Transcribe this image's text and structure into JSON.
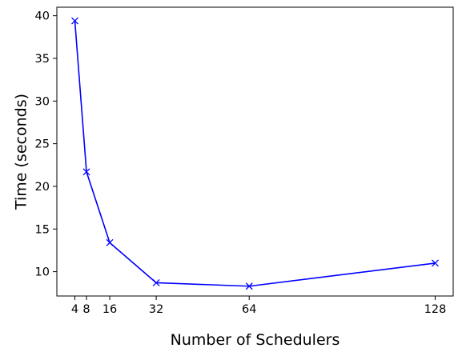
{
  "chart_data": {
    "type": "line",
    "title": "",
    "xlabel": "Number of Schedulers",
    "ylabel": "Time (seconds)",
    "x": [
      4,
      8,
      16,
      32,
      64,
      128
    ],
    "series": [
      {
        "values": [
          39.4,
          21.7,
          13.4,
          8.7,
          8.3,
          11.0
        ],
        "color": "#0000ff",
        "marker": "x"
      }
    ],
    "xlim": [
      -2.2,
      134.2
    ],
    "ylim": [
      7.15,
      41.0
    ],
    "xticks": [
      4,
      8,
      16,
      32,
      64,
      128
    ],
    "xtick_labels": [
      "4",
      "8",
      "16",
      "32",
      "64",
      "128"
    ],
    "yticks": [
      10,
      15,
      20,
      25,
      30,
      35,
      40
    ],
    "ytick_labels": [
      "10",
      "15",
      "20",
      "25",
      "30",
      "35",
      "40"
    ],
    "grid": false,
    "legend": "none"
  }
}
